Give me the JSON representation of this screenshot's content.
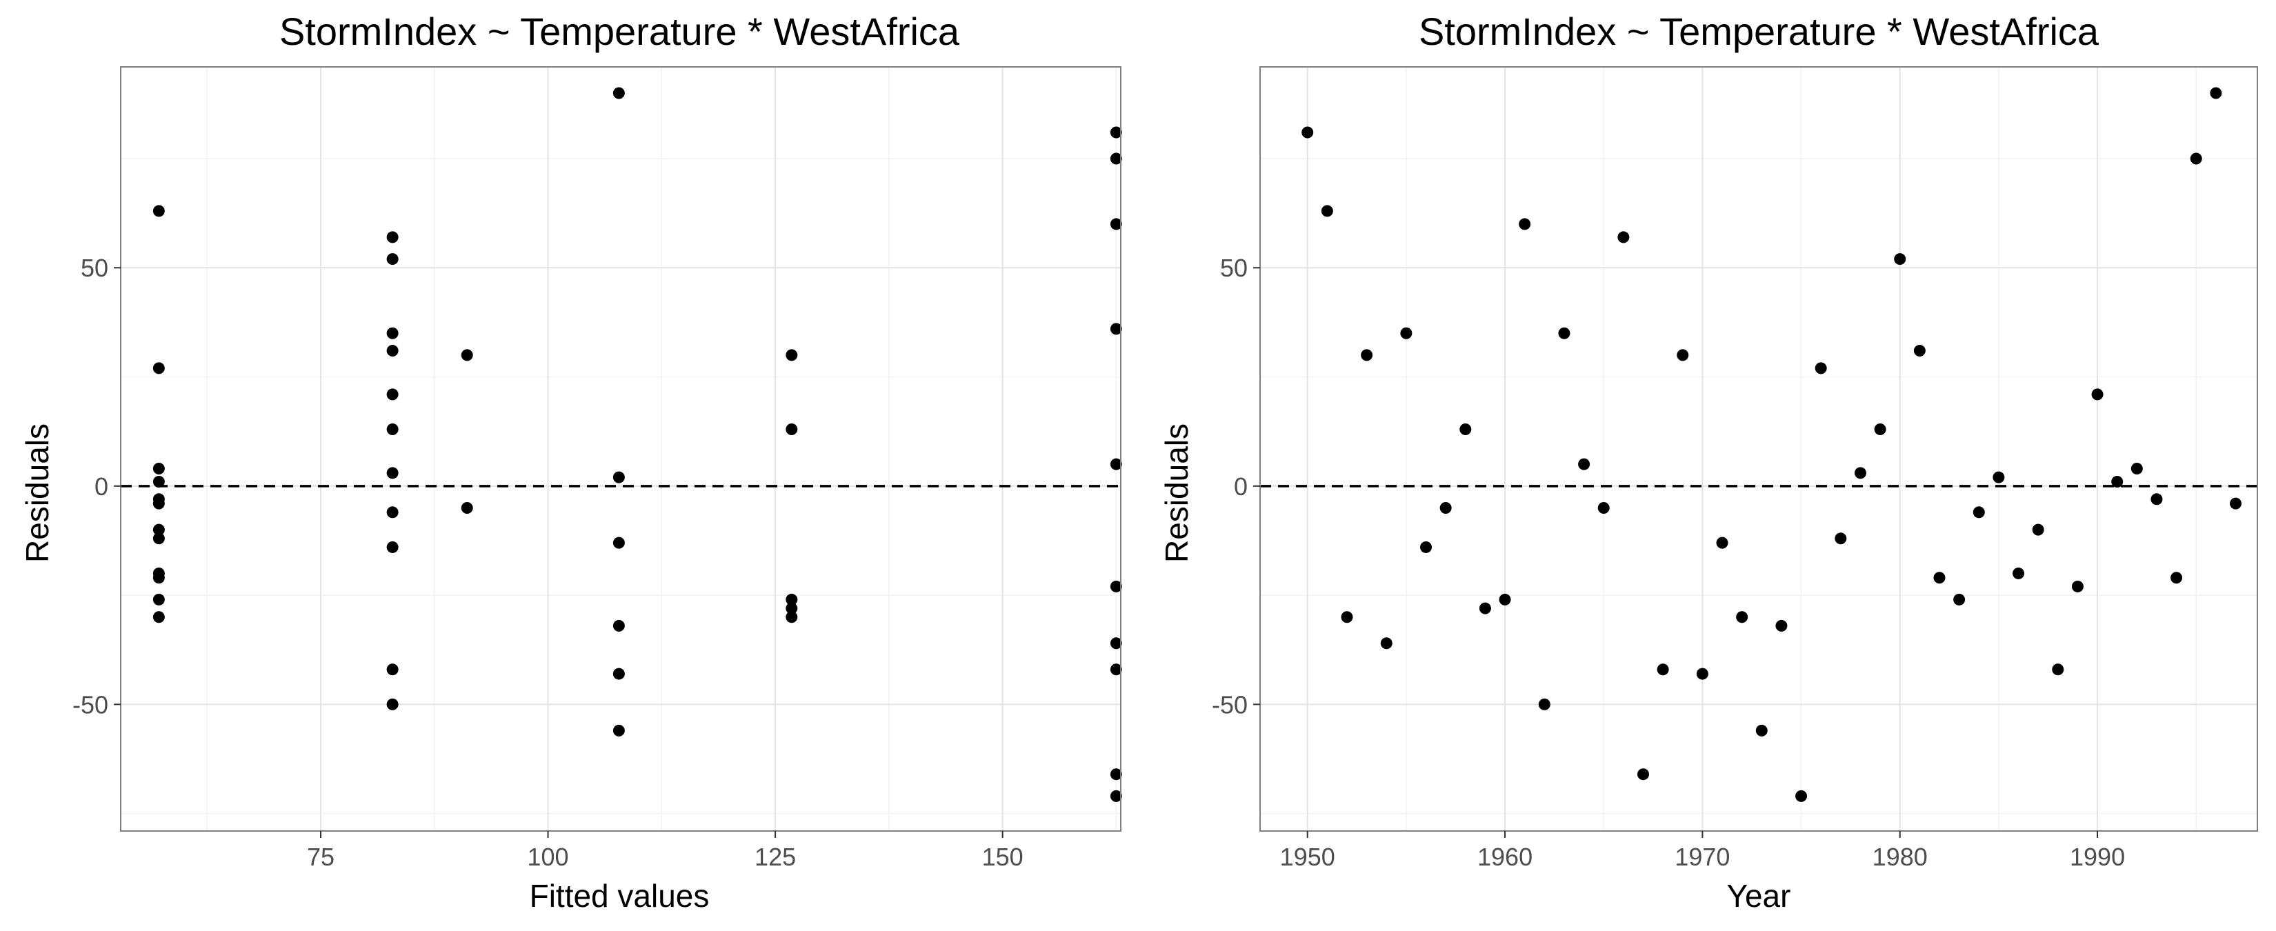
{
  "chart_data": [
    {
      "type": "scatter",
      "title": "StormIndex ~ Temperature * WestAfrica",
      "xlabel": "Fitted values",
      "ylabel": "Residuals",
      "xlim": [
        53,
        163
      ],
      "ylim": [
        -79,
        96
      ],
      "x_ticks": [
        75,
        100,
        125,
        150
      ],
      "x_tick_labels": [
        "75",
        "100",
        "125",
        "150"
      ],
      "y_ticks": [
        -50,
        0,
        50
      ],
      "y_tick_labels": [
        "-50",
        "0",
        "50"
      ],
      "reference_line": {
        "y": 0,
        "style": "dashed"
      },
      "grid": true,
      "points": [
        {
          "x": 57.2,
          "y": 63
        },
        {
          "x": 57.2,
          "y": 27
        },
        {
          "x": 57.2,
          "y": 4
        },
        {
          "x": 57.2,
          "y": 1
        },
        {
          "x": 57.2,
          "y": -3
        },
        {
          "x": 57.2,
          "y": -4
        },
        {
          "x": 57.2,
          "y": -10
        },
        {
          "x": 57.2,
          "y": -12
        },
        {
          "x": 57.2,
          "y": -20
        },
        {
          "x": 57.2,
          "y": -21
        },
        {
          "x": 57.2,
          "y": -26
        },
        {
          "x": 57.2,
          "y": -30
        },
        {
          "x": 82.9,
          "y": 57
        },
        {
          "x": 82.9,
          "y": 52
        },
        {
          "x": 82.9,
          "y": 35
        },
        {
          "x": 82.9,
          "y": 31
        },
        {
          "x": 82.9,
          "y": 21
        },
        {
          "x": 82.9,
          "y": 13
        },
        {
          "x": 82.9,
          "y": 3
        },
        {
          "x": 82.9,
          "y": -6
        },
        {
          "x": 82.9,
          "y": -14
        },
        {
          "x": 82.9,
          "y": -42
        },
        {
          "x": 82.9,
          "y": -50
        },
        {
          "x": 91.1,
          "y": 30
        },
        {
          "x": 91.1,
          "y": -5
        },
        {
          "x": 107.8,
          "y": 90
        },
        {
          "x": 107.8,
          "y": 2
        },
        {
          "x": 107.8,
          "y": -13
        },
        {
          "x": 107.8,
          "y": -32
        },
        {
          "x": 107.8,
          "y": -43
        },
        {
          "x": 107.8,
          "y": -56
        },
        {
          "x": 126.8,
          "y": 30
        },
        {
          "x": 126.8,
          "y": 13
        },
        {
          "x": 126.8,
          "y": -26
        },
        {
          "x": 126.8,
          "y": -28
        },
        {
          "x": 126.8,
          "y": -30
        },
        {
          "x": 162.5,
          "y": 81
        },
        {
          "x": 162.5,
          "y": 75
        },
        {
          "x": 162.5,
          "y": 60
        },
        {
          "x": 162.5,
          "y": 36
        },
        {
          "x": 162.5,
          "y": 5
        },
        {
          "x": 162.5,
          "y": -23
        },
        {
          "x": 162.5,
          "y": -36
        },
        {
          "x": 162.5,
          "y": -42
        },
        {
          "x": 162.5,
          "y": -66
        },
        {
          "x": 162.5,
          "y": -71
        }
      ]
    },
    {
      "type": "scatter",
      "title": "StormIndex ~ Temperature * WestAfrica",
      "xlabel": "Year",
      "ylabel": "Residuals",
      "xlim": [
        1947.6,
        1998.1
      ],
      "ylim": [
        -79,
        96
      ],
      "x_ticks": [
        1950,
        1960,
        1970,
        1980,
        1990
      ],
      "x_tick_labels": [
        "1950",
        "1960",
        "1970",
        "1980",
        "1990"
      ],
      "y_ticks": [
        -50,
        0,
        50
      ],
      "y_tick_labels": [
        "-50",
        "0",
        "50"
      ],
      "reference_line": {
        "y": 0,
        "style": "dashed"
      },
      "grid": true,
      "points": [
        {
          "x": 1950,
          "y": 81
        },
        {
          "x": 1951,
          "y": 63
        },
        {
          "x": 1952,
          "y": -30
        },
        {
          "x": 1953,
          "y": 30
        },
        {
          "x": 1954,
          "y": -36
        },
        {
          "x": 1955,
          "y": 35
        },
        {
          "x": 1956,
          "y": -14
        },
        {
          "x": 1957,
          "y": -5
        },
        {
          "x": 1958,
          "y": 13
        },
        {
          "x": 1959,
          "y": -28
        },
        {
          "x": 1960,
          "y": -26
        },
        {
          "x": 1961,
          "y": 60
        },
        {
          "x": 1962,
          "y": -50
        },
        {
          "x": 1963,
          "y": 35
        },
        {
          "x": 1964,
          "y": 5
        },
        {
          "x": 1965,
          "y": -5
        },
        {
          "x": 1966,
          "y": 57
        },
        {
          "x": 1967,
          "y": -66
        },
        {
          "x": 1968,
          "y": -42
        },
        {
          "x": 1969,
          "y": 30
        },
        {
          "x": 1970,
          "y": -43
        },
        {
          "x": 1971,
          "y": -13
        },
        {
          "x": 1972,
          "y": -30
        },
        {
          "x": 1973,
          "y": -56
        },
        {
          "x": 1974,
          "y": -32
        },
        {
          "x": 1975,
          "y": -71
        },
        {
          "x": 1976,
          "y": 27
        },
        {
          "x": 1977,
          "y": -12
        },
        {
          "x": 1978,
          "y": 3
        },
        {
          "x": 1979,
          "y": 13
        },
        {
          "x": 1980,
          "y": 52
        },
        {
          "x": 1981,
          "y": 31
        },
        {
          "x": 1982,
          "y": -21
        },
        {
          "x": 1983,
          "y": -26
        },
        {
          "x": 1984,
          "y": -6
        },
        {
          "x": 1985,
          "y": 2
        },
        {
          "x": 1986,
          "y": -20
        },
        {
          "x": 1987,
          "y": -10
        },
        {
          "x": 1988,
          "y": -42
        },
        {
          "x": 1989,
          "y": -23
        },
        {
          "x": 1990,
          "y": 21
        },
        {
          "x": 1991,
          "y": 1
        },
        {
          "x": 1992,
          "y": 4
        },
        {
          "x": 1993,
          "y": -3
        },
        {
          "x": 1994,
          "y": -21
        },
        {
          "x": 1995,
          "y": 75
        },
        {
          "x": 1996,
          "y": 90
        },
        {
          "x": 1997,
          "y": -4
        }
      ]
    }
  ]
}
